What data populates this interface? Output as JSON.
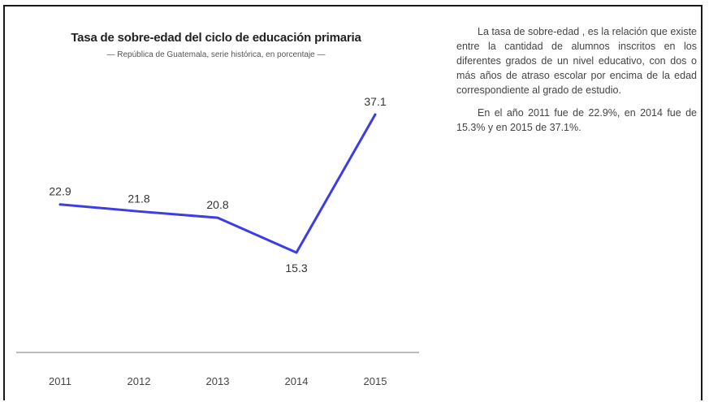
{
  "chart_data": {
    "type": "line",
    "title": "Tasa de sobre-edad del ciclo de educación primaria",
    "subtitle": "— República de Guatemala, serie histórica, en porcentaje —",
    "categories": [
      "2011",
      "2012",
      "2013",
      "2014",
      "2015"
    ],
    "values": [
      22.9,
      21.8,
      20.8,
      15.3,
      37.1
    ],
    "value_labels": [
      "22.9",
      "21.8",
      "20.8",
      "15.3",
      "37.1"
    ],
    "ylim": [
      0,
      40
    ],
    "grid": false,
    "line_color": "#3d3de6"
  },
  "description": {
    "paragraph1": "La tasa de sobre-edad , es la relación que existe entre la cantidad de alumnos inscritos en los diferentes grados de un nivel educativo, con dos o más años de atraso escolar por encima de la edad correspondiente al grado de estudio.",
    "paragraph2": "En el año 2011 fue de 22.9%, en 2014 fue de 15.3% y en 2015 de 37.1%."
  }
}
